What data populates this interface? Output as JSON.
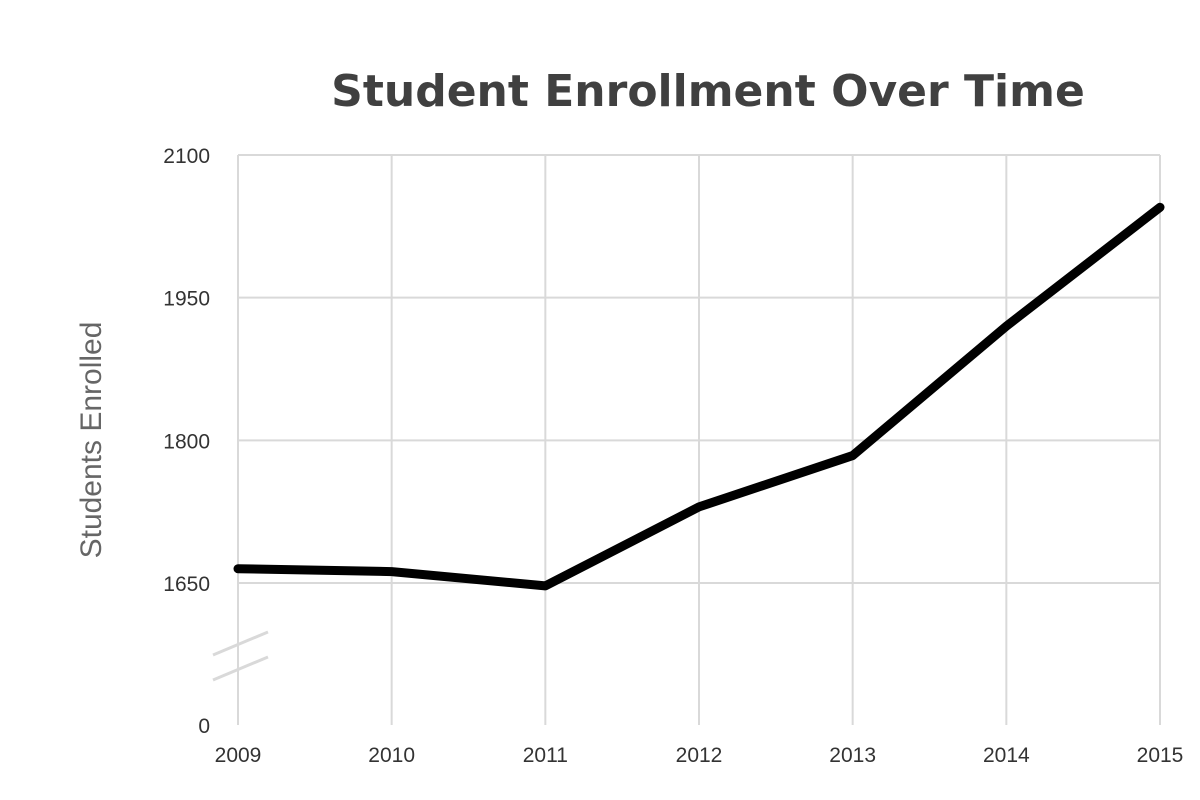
{
  "chart_data": {
    "type": "line",
    "title": "Student Enrollment Over Time",
    "xlabel": "",
    "ylabel": "Students Enrolled",
    "categories": [
      "2009",
      "2010",
      "2011",
      "2012",
      "2013",
      "2014",
      "2015"
    ],
    "series": [
      {
        "values": [
          1665,
          1662,
          1647,
          1730,
          1784,
          1920,
          2045
        ]
      }
    ],
    "yticks": [
      0,
      1650,
      1800,
      1950,
      2100
    ],
    "ylim": [
      1500,
      2100
    ],
    "axis_break": true,
    "grid": true,
    "line_color": "#000000",
    "grid_color": "#d9d9d9"
  }
}
